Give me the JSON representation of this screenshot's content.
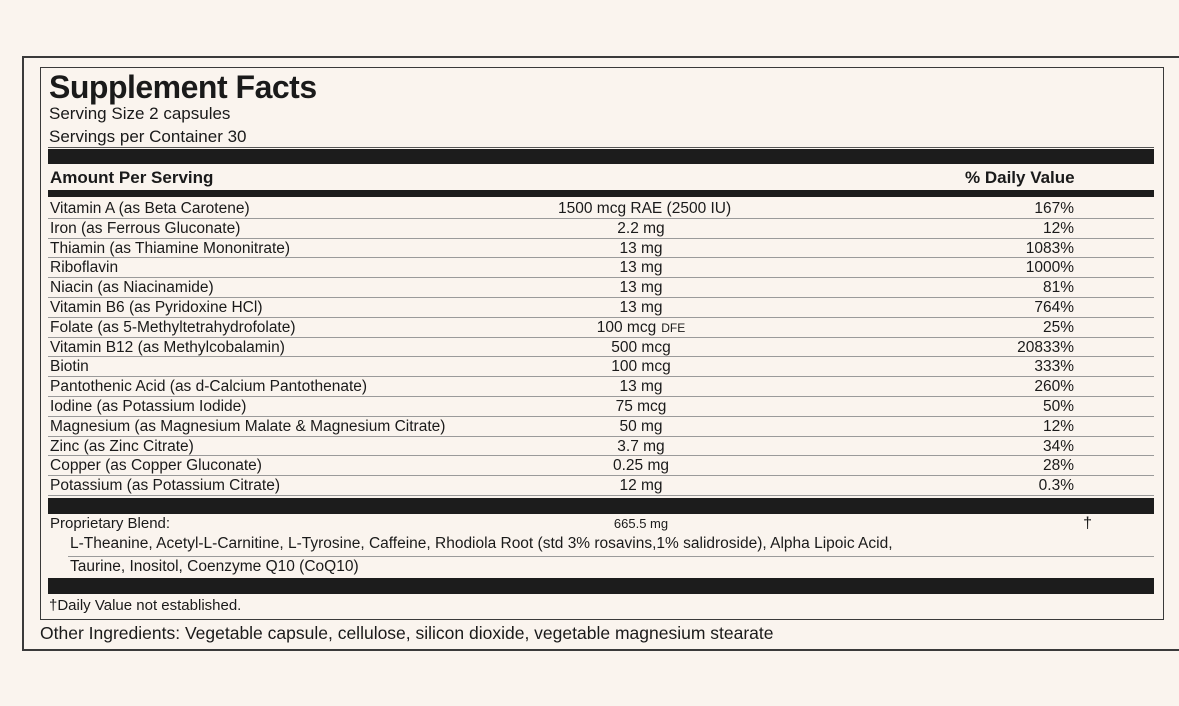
{
  "title": "Supplement Facts",
  "serving_size": "Serving Size 2 capsules",
  "servings_per_container": "Servings per Container 30",
  "header": {
    "amount": "Amount Per Serving",
    "daily_value": "% Daily Value"
  },
  "nutrients": [
    {
      "name": "Vitamin A (as Beta Carotene)",
      "amount": "1500 mcg RAE (2500 IU)",
      "unit_note": "",
      "dv": "167%"
    },
    {
      "name": "Iron (as Ferrous Gluconate)",
      "amount": "2.2 mg",
      "unit_note": "",
      "dv": "12%"
    },
    {
      "name": "Thiamin (as Thiamine Mononitrate)",
      "amount": "13 mg",
      "unit_note": "",
      "dv": "1083%"
    },
    {
      "name": "Riboflavin",
      "amount": "13 mg",
      "unit_note": "",
      "dv": "1000%"
    },
    {
      "name": "Niacin (as Niacinamide)",
      "amount": "13 mg",
      "unit_note": "",
      "dv": "81%"
    },
    {
      "name": "Vitamin B6 (as Pyridoxine HCl)",
      "amount": "13 mg",
      "unit_note": "",
      "dv": "764%"
    },
    {
      "name": "Folate (as 5-Methyltetrahydrofolate)",
      "amount": "100 mcg",
      "unit_note": "DFE",
      "dv": "25%"
    },
    {
      "name": "Vitamin B12 (as Methylcobalamin)",
      "amount": "500 mcg",
      "unit_note": "",
      "dv": "20833%"
    },
    {
      "name": "Biotin",
      "amount": "100 mcg",
      "unit_note": "",
      "dv": "333%"
    },
    {
      "name": "Pantothenic Acid (as d-Calcium Pantothenate)",
      "amount": "13 mg",
      "unit_note": "",
      "dv": "260%"
    },
    {
      "name": "Iodine (as Potassium Iodide)",
      "amount": "75 mcg",
      "unit_note": "",
      "dv": "50%"
    },
    {
      "name": "Magnesium (as Magnesium Malate & Magnesium Citrate)",
      "amount": "50 mg",
      "unit_note": "",
      "dv": "12%"
    },
    {
      "name": "Zinc (as Zinc Citrate)",
      "amount": "3.7 mg",
      "unit_note": "",
      "dv": "34%"
    },
    {
      "name": "Copper (as Copper Gluconate)",
      "amount": "0.25 mg",
      "unit_note": "",
      "dv": "28%"
    },
    {
      "name": "Potassium  (as Potassium Citrate)",
      "amount": "12 mg",
      "unit_note": "",
      "dv": "0.3%"
    }
  ],
  "blend": {
    "name": "Proprietary Blend:",
    "amount": "665.5 mg",
    "dv": "†",
    "ingredients_line1": "L-Theanine, Acetyl-L-Carnitine,  L-Tyrosine, Caffeine, Rhodiola Root (std 3% rosavins,1% salidroside), Alpha Lipoic Acid,",
    "ingredients_line2": "Taurine, Inositol, Coenzyme Q10 (CoQ10)"
  },
  "footnote": "†Daily Value not established.",
  "other_ingredients": "Other Ingredients: Vegetable capsule, cellulose, silicon dioxide, vegetable magnesium stearate"
}
